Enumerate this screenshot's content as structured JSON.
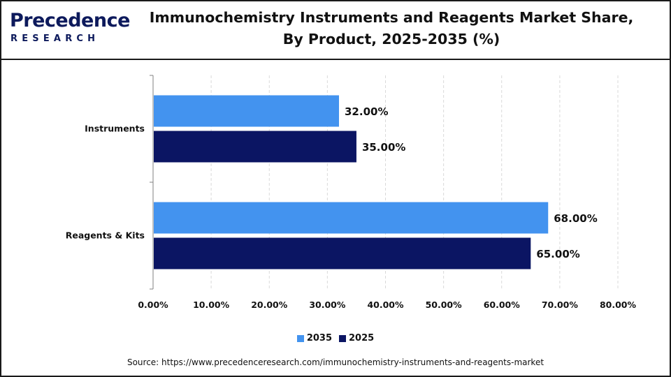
{
  "brand": {
    "name_top": "Precedence",
    "name_bottom": "RESEARCH"
  },
  "header": {
    "title_line1": "Immunochemistry Instruments and Reagents Market Share,",
    "title_line2": "By Product, 2025-2035 (%)"
  },
  "source": "Source: https://www.precedenceresearch.com/immunochemistry-instruments-and-reagents-market",
  "colors": {
    "series_2035": "#4393ef",
    "series_2025": "#0b1563",
    "gridline": "#d9d9d9",
    "axis": "#808080"
  },
  "chart_data": {
    "type": "bar",
    "orientation": "horizontal",
    "title": "Immunochemistry Instruments and Reagents Market Share, By Product, 2025-2035 (%)",
    "categories": [
      "Instruments",
      "Reagents & Kits"
    ],
    "series": [
      {
        "name": "2035",
        "values": [
          32.0,
          68.0
        ],
        "labels": [
          "32.00%",
          "68.00%"
        ]
      },
      {
        "name": "2025",
        "values": [
          35.0,
          65.0
        ],
        "labels": [
          "35.00%",
          "65.00%"
        ]
      }
    ],
    "xlim": [
      0,
      80
    ],
    "x_ticks": [
      0,
      10,
      20,
      30,
      40,
      50,
      60,
      70,
      80
    ],
    "x_tick_labels": [
      "0.00%",
      "10.00%",
      "20.00%",
      "30.00%",
      "40.00%",
      "50.00%",
      "60.00%",
      "70.00%",
      "80.00%"
    ],
    "grid": true,
    "legend_position": "bottom"
  }
}
